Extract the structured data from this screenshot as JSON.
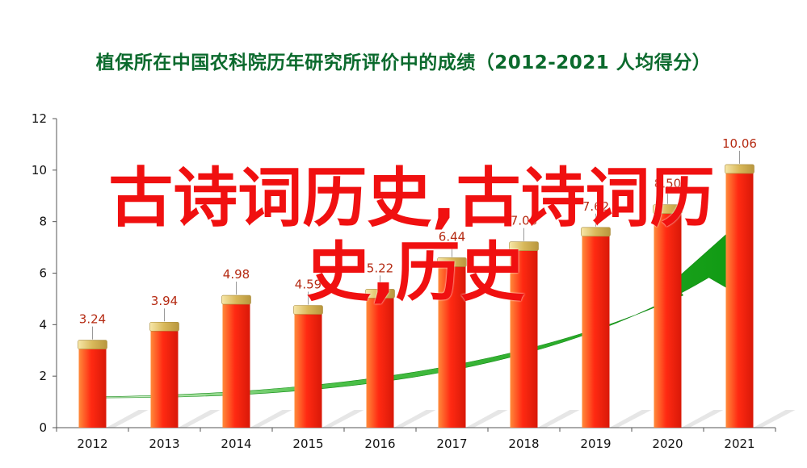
{
  "chart_data": {
    "type": "bar",
    "title": "植保所在中国农科院历年研究所评价中的成绩（2012-2021 人均得分）",
    "categories": [
      "2012",
      "2013",
      "2014",
      "2015",
      "2016",
      "2017",
      "2018",
      "2019",
      "2020",
      "2021"
    ],
    "values": [
      3.24,
      3.94,
      4.98,
      4.59,
      5.22,
      6.44,
      7.06,
      7.62,
      8.5,
      10.06
    ],
    "data_labels": [
      "3.24",
      "3.94",
      "4.98",
      "4.59",
      "5.22",
      "6.44",
      "7.06",
      "7.62",
      "8.50",
      "10.06"
    ],
    "ylim": [
      0,
      12
    ],
    "yticks": [
      0,
      2,
      4,
      6,
      8,
      10,
      12
    ],
    "xlabel": "",
    "ylabel": "",
    "grid": false,
    "bar_color": "#f03a10",
    "bar_cap_color": "#d9c27a",
    "trend_arrow_color": "#1aa31a"
  },
  "overlay": {
    "line1": "古诗词历史,古诗词历",
    "line2": "史,历史"
  }
}
